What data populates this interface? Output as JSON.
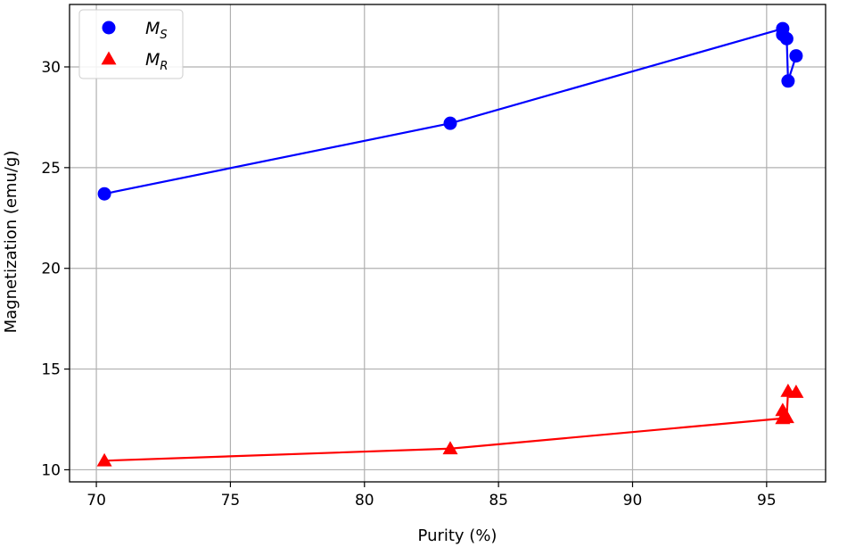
{
  "chart_data": {
    "type": "line",
    "title": "",
    "xlabel": "Purity (%)",
    "ylabel": "Magnetization (emu/g)",
    "xlim": [
      69,
      97.2
    ],
    "ylim": [
      9.4,
      33.1
    ],
    "xticks": [
      70,
      75,
      80,
      85,
      90,
      95
    ],
    "yticks": [
      10,
      15,
      20,
      25,
      30
    ],
    "grid": true,
    "legend_position": "top-left",
    "series": [
      {
        "name": "M",
        "name_sub": "S",
        "color": "#0000ff",
        "marker": "circle",
        "x": [
          70.3,
          83.2,
          95.6,
          95.6,
          95.75,
          95.8,
          96.1
        ],
        "y": [
          23.7,
          27.2,
          31.9,
          31.6,
          31.4,
          29.3,
          30.55
        ]
      },
      {
        "name": "M",
        "name_sub": "R",
        "color": "#ff0000",
        "marker": "triangle",
        "x": [
          70.3,
          83.2,
          95.6,
          95.6,
          95.75,
          95.8,
          96.1
        ],
        "y": [
          10.45,
          11.05,
          12.55,
          12.95,
          12.6,
          13.9,
          13.85
        ]
      }
    ]
  }
}
